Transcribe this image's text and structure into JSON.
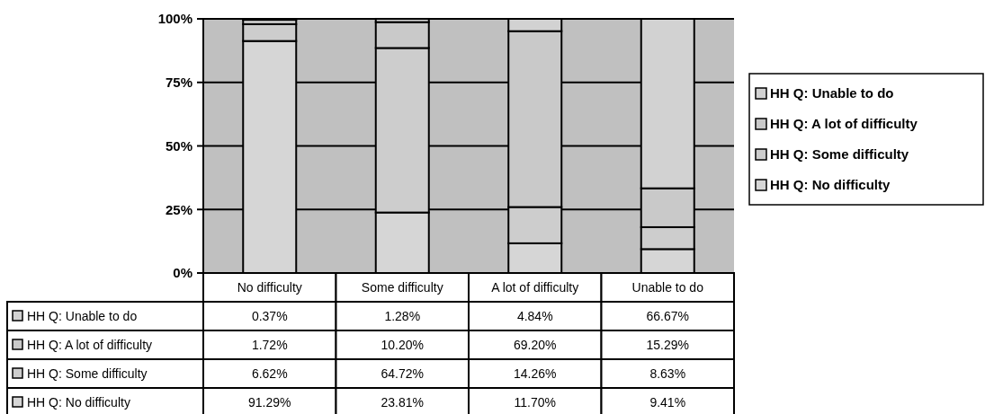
{
  "chart_data": {
    "type": "bar",
    "stacked": true,
    "categories": [
      "No difficulty",
      "Some difficulty",
      "A lot of difficulty",
      "Unable to do"
    ],
    "series": [
      {
        "name": "HH Q: No difficulty",
        "color": "#d6d6d6",
        "values": [
          91.29,
          23.81,
          11.7,
          9.41
        ],
        "value_labels": [
          "91.29%",
          "23.81%",
          "11.70%",
          "9.41%"
        ]
      },
      {
        "name": "HH Q: Some difficulty",
        "color": "#cdcdcd",
        "values": [
          6.62,
          64.72,
          14.26,
          8.63
        ],
        "value_labels": [
          "6.62%",
          "64.72%",
          "14.26%",
          "8.63%"
        ]
      },
      {
        "name": "HH Q: A lot of difficulty",
        "color": "#c9c9c9",
        "values": [
          1.72,
          10.2,
          69.2,
          15.29
        ],
        "value_labels": [
          "1.72%",
          "10.20%",
          "69.20%",
          "15.29%"
        ]
      },
      {
        "name": "HH Q: Unable to do",
        "color": "#d2d2d2",
        "values": [
          0.37,
          1.28,
          4.84,
          66.67
        ],
        "value_labels": [
          "0.37%",
          "1.28%",
          "4.84%",
          "66.67%"
        ]
      }
    ],
    "ylim": [
      0,
      100
    ],
    "yticks": [
      {
        "value": 0,
        "label": "0%"
      },
      {
        "value": 25,
        "label": "25%"
      },
      {
        "value": 50,
        "label": "50%"
      },
      {
        "value": 75,
        "label": "75%"
      },
      {
        "value": 100,
        "label": "100%"
      }
    ],
    "grid": "y",
    "legend": "right"
  }
}
